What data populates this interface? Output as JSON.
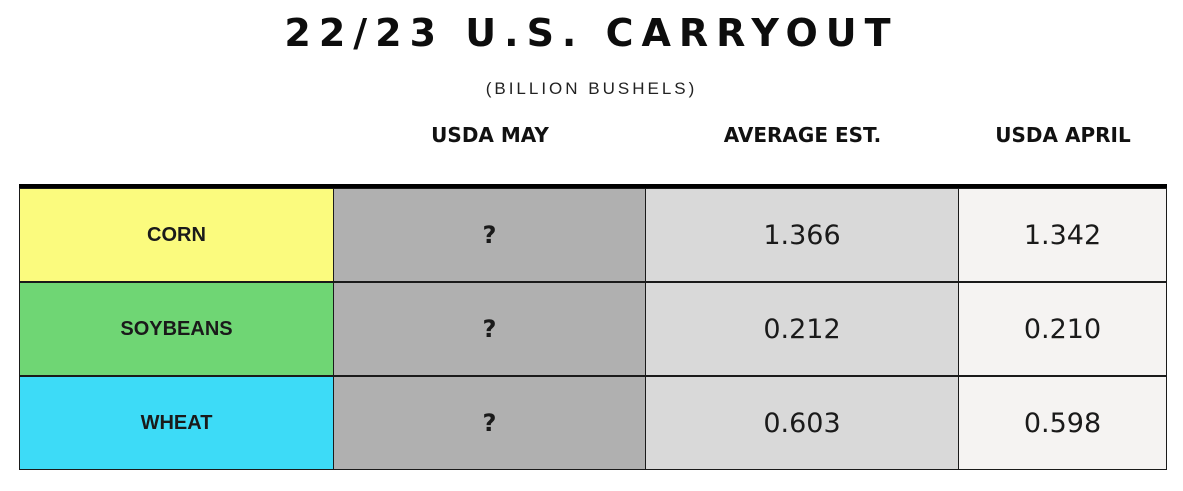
{
  "chart_data": {
    "type": "table",
    "title": "22/23 U.S. CARRYOUT",
    "subtitle": "(BILLION BUSHELS)",
    "columns": [
      "USDA MAY",
      "AVERAGE EST.",
      "USDA APRIL"
    ],
    "rows": [
      {
        "label": "CORN",
        "usda_may": "?",
        "average_est": "1.366",
        "usda_april": "1.342",
        "color": "#fbfb7e"
      },
      {
        "label": "SOYBEANS",
        "usda_may": "?",
        "average_est": "0.212",
        "usda_april": "0.210",
        "color": "#6fd674"
      },
      {
        "label": "WHEAT",
        "usda_may": "?",
        "average_est": "0.603",
        "usda_april": "0.598",
        "color": "#3ddbf7"
      }
    ]
  },
  "colors": {
    "usda_may_fill": "#b0b0b0",
    "average_est_fill": "#d9d9d9",
    "usda_april_fill": "#f5f3f2"
  }
}
